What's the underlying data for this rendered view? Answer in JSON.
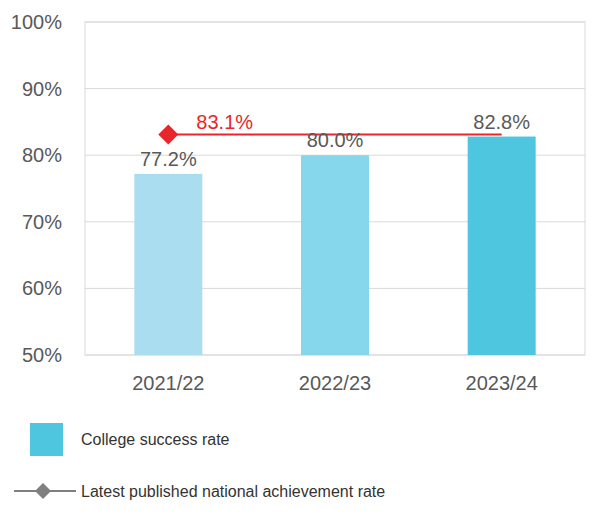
{
  "chart_data": {
    "type": "bar",
    "categories": [
      "2021/22",
      "2022/23",
      "2023/24"
    ],
    "series": [
      {
        "name": "College success rate",
        "type": "bar",
        "color": "#4fc6e0",
        "colors": [
          "#abddf1",
          "#86d6ec",
          "#4fc6e0"
        ],
        "values": [
          77.2,
          80.0,
          82.8
        ],
        "value_labels": [
          "77.2%",
          "80.0%",
          "82.8%"
        ]
      },
      {
        "name": "Latest published national achievement rate",
        "type": "line",
        "color": "#e8262b",
        "marker": "diamond",
        "values": [
          83.1,
          83.1,
          83.1
        ],
        "value_labels": [
          "83.1%",
          null,
          null
        ]
      }
    ],
    "ylim": [
      50,
      100
    ],
    "yticks": [
      {
        "value": 50,
        "label": "50%"
      },
      {
        "value": 60,
        "label": "60%"
      },
      {
        "value": 70,
        "label": "70%"
      },
      {
        "value": 80,
        "label": "80%"
      },
      {
        "value": 90,
        "label": "90%"
      },
      {
        "value": 100,
        "label": "100%"
      }
    ],
    "grid": true,
    "data_labels": true
  }
}
